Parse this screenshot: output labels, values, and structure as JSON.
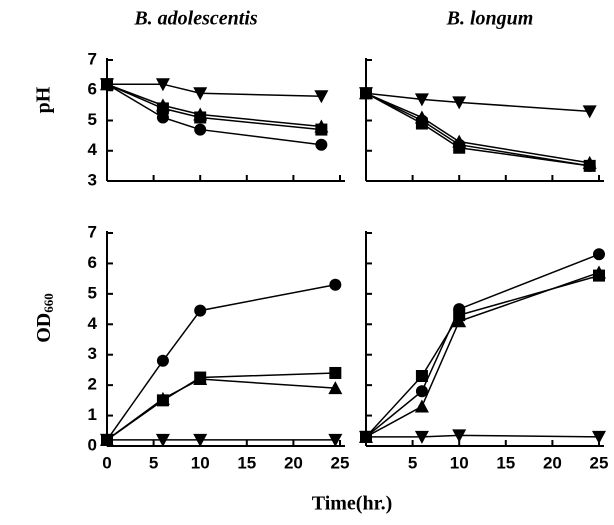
{
  "chart_data": [
    {
      "type": "line",
      "title": "B. adolescentis",
      "ylabel": "pH",
      "xlim": [
        0,
        25
      ],
      "ylim": [
        3,
        7
      ],
      "yticks": [
        3,
        4,
        5,
        6,
        7
      ],
      "x": [
        0,
        6,
        10,
        23
      ],
      "series": [
        {
          "marker": "triangle-down",
          "color": "#000000",
          "values": [
            6.2,
            6.2,
            5.9,
            5.8
          ]
        },
        {
          "marker": "square",
          "color": "#000000",
          "values": [
            6.2,
            5.4,
            5.1,
            4.7
          ]
        },
        {
          "marker": "triangle-up",
          "color": "#000000",
          "values": [
            6.2,
            5.5,
            5.2,
            4.8
          ]
        },
        {
          "marker": "circle",
          "color": "#000000",
          "values": [
            6.2,
            5.1,
            4.7,
            4.2
          ]
        }
      ]
    },
    {
      "type": "line",
      "title": "B. longum",
      "xlim": [
        0,
        25
      ],
      "ylim": [
        3,
        7
      ],
      "x": [
        0,
        6,
        10,
        24
      ],
      "series": [
        {
          "marker": "triangle-down",
          "color": "#000000",
          "values": [
            5.9,
            5.7,
            5.6,
            5.3
          ]
        },
        {
          "marker": "triangle-up",
          "color": "#000000",
          "values": [
            5.9,
            5.1,
            4.3,
            3.6
          ]
        },
        {
          "marker": "circle",
          "color": "#000000",
          "values": [
            5.9,
            5.0,
            4.2,
            3.5
          ]
        },
        {
          "marker": "square",
          "color": "#000000",
          "values": [
            5.9,
            4.9,
            4.1,
            3.5
          ]
        }
      ]
    },
    {
      "type": "line",
      "ylabel": "OD",
      "ylabel_subscript": "660",
      "xlabel": "Time(hr.)",
      "xlim": [
        0,
        25
      ],
      "ylim": [
        0,
        7
      ],
      "yticks": [
        0,
        1,
        2,
        3,
        4,
        5,
        6,
        7
      ],
      "xticks": [
        0,
        5,
        10,
        15,
        20,
        25
      ],
      "x": [
        0,
        6,
        10,
        24.5
      ],
      "series": [
        {
          "marker": "circle",
          "color": "#000000",
          "values": [
            0.2,
            2.8,
            4.45,
            5.3
          ]
        },
        {
          "marker": "square",
          "color": "#000000",
          "values": [
            0.2,
            1.5,
            2.25,
            2.4
          ]
        },
        {
          "marker": "triangle-up",
          "color": "#000000",
          "values": [
            0.2,
            1.55,
            2.2,
            1.9
          ]
        },
        {
          "marker": "triangle-down",
          "color": "#000000",
          "values": [
            0.2,
            0.2,
            0.2,
            0.2
          ]
        }
      ]
    },
    {
      "type": "line",
      "xlim": [
        0,
        25
      ],
      "ylim": [
        0,
        7
      ],
      "xticks": [
        5,
        10,
        15,
        20,
        25
      ],
      "x": [
        0,
        6,
        10,
        25
      ],
      "series": [
        {
          "marker": "circle",
          "color": "#000000",
          "values": [
            0.3,
            1.8,
            4.5,
            6.3
          ]
        },
        {
          "marker": "square",
          "color": "#000000",
          "values": [
            0.3,
            2.3,
            4.3,
            5.6
          ]
        },
        {
          "marker": "triangle-up",
          "color": "#000000",
          "values": [
            0.3,
            1.3,
            4.1,
            5.7
          ]
        },
        {
          "marker": "triangle-down",
          "color": "#000000",
          "values": [
            0.3,
            0.3,
            0.35,
            0.3
          ]
        }
      ]
    }
  ]
}
